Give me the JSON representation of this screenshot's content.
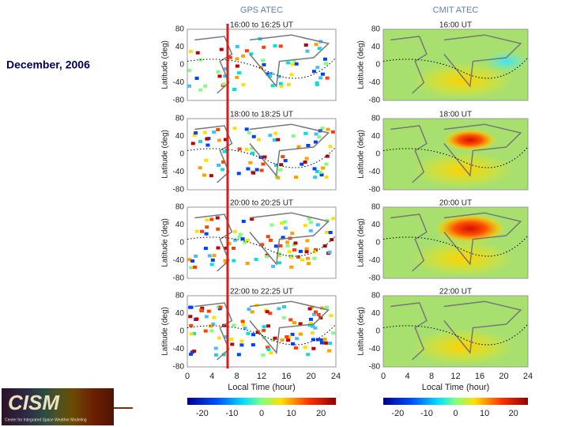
{
  "title": "December, 2006",
  "logo": {
    "name": "CISM",
    "subtitle": "Center for Integrated Space Weather Modeling"
  },
  "columns": [
    {
      "title": "GPS ATEC",
      "panels": [
        "16:00 to 16:25 UT",
        "18:00 to 18:25 UT",
        "20:00 to 20:25 UT",
        "22:00 to 22:25 UT"
      ]
    },
    {
      "title": "CMIT ATEC",
      "panels": [
        "16:00 UT",
        "18:00 UT",
        "20:00 UT",
        "22:00 UT"
      ]
    }
  ],
  "y_axis": {
    "label": "Latitude (deg)",
    "ticks": [
      80,
      40,
      0,
      -40,
      -80
    ]
  },
  "x_axis": {
    "label": "Local Time (hour)",
    "ticks": [
      0,
      4,
      8,
      12,
      16,
      20,
      24
    ]
  },
  "colorbar": {
    "ticks": [
      -20,
      -10,
      0,
      10,
      20
    ]
  }
}
